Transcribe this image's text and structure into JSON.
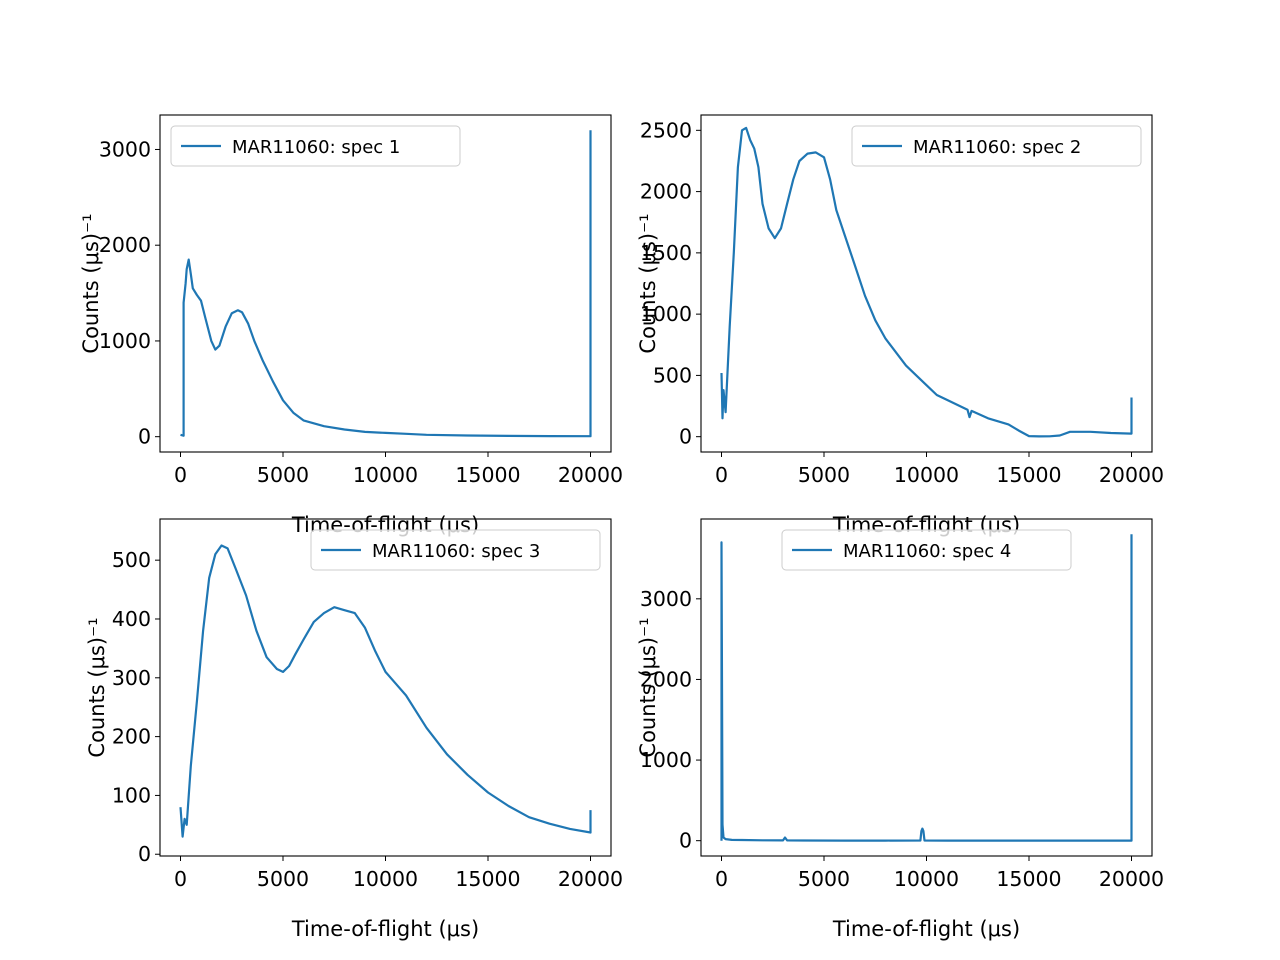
{
  "figure": {
    "background": "#ffffff",
    "line_color": "#1f77b4",
    "axis_color": "#000000"
  },
  "chart_data": [
    {
      "type": "line",
      "xlabel": "Time-of-flight (μs)",
      "ylabel": "Counts (μs)⁻¹",
      "xlim": [
        -1000,
        21000
      ],
      "ylim": [
        -160,
        3360
      ],
      "xticks": [
        0,
        5000,
        10000,
        15000,
        20000
      ],
      "yticks": [
        0,
        1000,
        2000,
        3000
      ],
      "legend": "top-left",
      "series": [
        {
          "name": "MAR11060: spec 1",
          "color": "#1f77b4",
          "x": [
            0,
            150,
            150,
            250,
            300,
            400,
            500,
            600,
            800,
            1000,
            1200,
            1500,
            1700,
            1900,
            2200,
            2500,
            2800,
            3000,
            3300,
            3600,
            4000,
            4500,
            5000,
            5500,
            6000,
            7000,
            8000,
            9000,
            10000,
            11000,
            12000,
            14000,
            16000,
            18000,
            20000,
            20000
          ],
          "y": [
            20,
            10,
            1400,
            1600,
            1750,
            1850,
            1700,
            1550,
            1480,
            1420,
            1250,
            1000,
            910,
            950,
            1150,
            1290,
            1320,
            1300,
            1180,
            1000,
            800,
            580,
            380,
            250,
            170,
            110,
            75,
            50,
            40,
            30,
            20,
            12,
            8,
            6,
            5,
            3200
          ]
        }
      ]
    },
    {
      "type": "line",
      "xlabel": "Time-of-flight (μs)",
      "ylabel": "Counts (μs)⁻¹",
      "xlim": [
        -1000,
        21000
      ],
      "ylim": [
        -125,
        2625
      ],
      "xticks": [
        0,
        5000,
        10000,
        15000,
        20000
      ],
      "yticks": [
        0,
        500,
        1000,
        1500,
        2000,
        2500
      ],
      "legend": "top-right",
      "series": [
        {
          "name": "MAR11060: spec 2",
          "color": "#1f77b4",
          "x": [
            0,
            50,
            100,
            200,
            400,
            600,
            800,
            1000,
            1200,
            1400,
            1600,
            1800,
            2000,
            2300,
            2600,
            2900,
            3200,
            3500,
            3800,
            4200,
            4600,
            5000,
            5300,
            5600,
            6000,
            6500,
            7000,
            7500,
            8000,
            9000,
            10000,
            10500,
            11000,
            12000,
            12100,
            12200,
            13000,
            14000,
            14500,
            15000,
            15500,
            16000,
            16500,
            17000,
            18000,
            19000,
            20000,
            20000
          ],
          "y": [
            520,
            150,
            380,
            200,
            900,
            1500,
            2200,
            2500,
            2520,
            2420,
            2350,
            2200,
            1900,
            1700,
            1620,
            1700,
            1900,
            2100,
            2250,
            2310,
            2320,
            2280,
            2100,
            1850,
            1650,
            1400,
            1150,
            950,
            800,
            580,
            420,
            340,
            300,
            220,
            160,
            210,
            150,
            100,
            50,
            5,
            2,
            3,
            10,
            40,
            40,
            30,
            25,
            320
          ]
        }
      ]
    },
    {
      "type": "line",
      "xlabel": "Time-of-flight (μs)",
      "ylabel": "Counts (μs)⁻¹",
      "xlim": [
        -1000,
        21000
      ],
      "ylim": [
        -3,
        570
      ],
      "xticks": [
        0,
        5000,
        10000,
        15000,
        20000
      ],
      "yticks": [
        0,
        100,
        200,
        300,
        400,
        500
      ],
      "legend": "top-right",
      "series": [
        {
          "name": "MAR11060: spec 3",
          "color": "#1f77b4",
          "x": [
            0,
            100,
            200,
            300,
            500,
            800,
            1100,
            1400,
            1700,
            2000,
            2300,
            2700,
            3200,
            3700,
            4200,
            4700,
            5000,
            5300,
            5600,
            6000,
            6500,
            7000,
            7500,
            8000,
            8500,
            9000,
            9500,
            10000,
            10500,
            11000,
            12000,
            13000,
            14000,
            15000,
            16000,
            17000,
            18000,
            19000,
            20000,
            20000
          ],
          "y": [
            80,
            30,
            60,
            50,
            150,
            260,
            380,
            470,
            510,
            525,
            520,
            485,
            440,
            380,
            335,
            315,
            310,
            320,
            340,
            365,
            395,
            410,
            420,
            415,
            410,
            385,
            345,
            310,
            290,
            270,
            215,
            170,
            135,
            105,
            82,
            63,
            52,
            43,
            37,
            75
          ]
        }
      ]
    },
    {
      "type": "line",
      "xlabel": "Time-of-flight (μs)",
      "ylabel": "Counts (μs)⁻¹",
      "xlim": [
        -1000,
        21000
      ],
      "ylim": [
        -190,
        3990
      ],
      "xticks": [
        0,
        5000,
        10000,
        15000,
        20000
      ],
      "yticks": [
        0,
        1000,
        2000,
        3000
      ],
      "legend": "top-center",
      "series": [
        {
          "name": "MAR11060: spec 4",
          "color": "#1f77b4",
          "x": [
            0,
            0,
            50,
            100,
            200,
            500,
            1000,
            2000,
            3000,
            3100,
            3200,
            4000,
            6000,
            8000,
            9700,
            9750,
            9800,
            9850,
            9900,
            11000,
            14000,
            17000,
            19000,
            20000,
            20000
          ],
          "y": [
            0,
            3700,
            200,
            40,
            20,
            10,
            8,
            5,
            3,
            40,
            3,
            2,
            1,
            1,
            2,
            120,
            150,
            120,
            2,
            1,
            1,
            1,
            1,
            1,
            3800
          ]
        }
      ]
    }
  ]
}
